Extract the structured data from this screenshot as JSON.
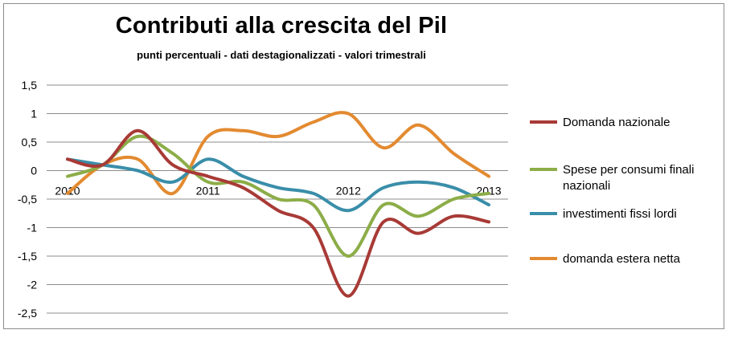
{
  "chart_data": {
    "type": "line",
    "title": "Contributi alla crescita del Pil",
    "subtitle": "punti percentuali - dati destagionalizzati - valori trimestrali",
    "xlabel": "",
    "ylabel": "",
    "ylim": [
      -2.5,
      1.5
    ],
    "yticks": [
      "1,5",
      "1",
      "0,5",
      "0",
      "-0,5",
      "-1",
      "-1,5",
      "-2",
      "-2,5"
    ],
    "ytick_values": [
      1.5,
      1,
      0.5,
      0,
      -0.5,
      -1,
      -1.5,
      -2,
      -2.5
    ],
    "x_labels": [
      {
        "label": "2010",
        "index": 0
      },
      {
        "label": "2011",
        "index": 4
      },
      {
        "label": "2012",
        "index": 8
      },
      {
        "label": "2013",
        "index": 12
      }
    ],
    "n_points": 13,
    "grid": true,
    "legend_position": "right",
    "series": [
      {
        "name": "Domanda nazionale",
        "color": "#a83a36",
        "values": [
          0.2,
          0.1,
          0.7,
          0.1,
          -0.1,
          -0.3,
          -0.7,
          -1.0,
          -2.2,
          -0.9,
          -1.1,
          -0.8,
          -0.9
        ]
      },
      {
        "name": "Spese per consumi finali nazionali",
        "color": "#8cad48",
        "values": [
          -0.1,
          0.1,
          0.6,
          0.3,
          -0.2,
          -0.2,
          -0.5,
          -0.6,
          -1.5,
          -0.6,
          -0.8,
          -0.5,
          -0.4
        ]
      },
      {
        "name": "investimenti fissi lordi",
        "color": "#3a8ea9",
        "values": [
          0.2,
          0.1,
          0.0,
          -0.2,
          0.2,
          -0.1,
          -0.3,
          -0.4,
          -0.7,
          -0.3,
          -0.2,
          -0.3,
          -0.6
        ]
      },
      {
        "name": "domanda estera netta",
        "color": "#e38a30",
        "values": [
          -0.4,
          0.1,
          0.2,
          -0.4,
          0.6,
          0.7,
          0.6,
          0.85,
          1.0,
          0.4,
          0.8,
          0.3,
          -0.1
        ]
      }
    ]
  }
}
